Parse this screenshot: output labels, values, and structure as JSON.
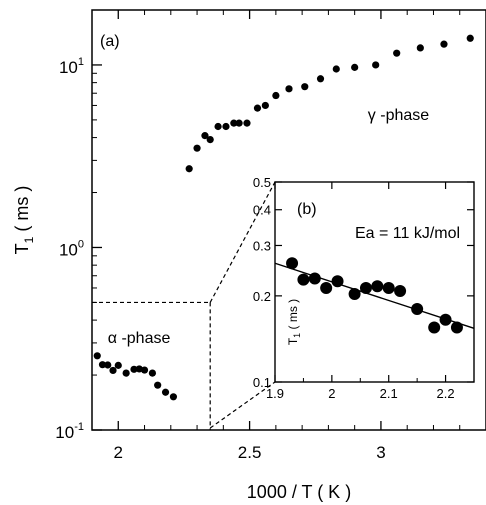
{
  "chart_data": [
    {
      "type": "scatter",
      "panel_label": "(a)",
      "xlabel": "1000 / T ( K )",
      "ylabel": "T",
      "ylabel_sub": "1",
      "ylabel_unit": "( ms )",
      "x_range": [
        1.9,
        3.4
      ],
      "y_range": [
        0.1,
        20
      ],
      "y_scale": "log",
      "x_ticks": [
        2,
        2.5,
        3
      ],
      "x_tick_labels": [
        "2",
        "2.5",
        "3"
      ],
      "y_ticks": [
        {
          "value": 0.1,
          "base": "10",
          "exp": "-1"
        },
        {
          "value": 1,
          "base": "10",
          "exp": "0"
        },
        {
          "value": 10,
          "base": "10",
          "exp": "1"
        }
      ],
      "annotations": [
        {
          "text": "γ -phase",
          "x": 2.95,
          "y": 5.0
        },
        {
          "text": "α -phase",
          "x": 1.96,
          "y": 0.3
        }
      ],
      "zoom_box": {
        "x": [
          1.9,
          2.35
        ],
        "y_top": 0.5
      },
      "series": [
        {
          "x": [
            1.92,
            1.94,
            1.96,
            1.98,
            2.0,
            2.03,
            2.06,
            2.08,
            2.1,
            2.13,
            2.15,
            2.18,
            2.21
          ],
          "y": [
            0.255,
            0.228,
            0.227,
            0.212,
            0.226,
            0.205,
            0.215,
            0.216,
            0.213,
            0.205,
            0.176,
            0.161,
            0.152
          ]
        },
        {
          "x": [
            2.27,
            2.3,
            2.33,
            2.35,
            2.38,
            2.41,
            2.44,
            2.46,
            2.49,
            2.53,
            2.56,
            2.6,
            2.65,
            2.71,
            2.77,
            2.83,
            2.9,
            2.98,
            3.06,
            3.15,
            3.24,
            3.34
          ],
          "y": [
            2.7,
            3.5,
            4.1,
            3.9,
            4.6,
            4.6,
            4.8,
            4.8,
            4.8,
            5.8,
            6.0,
            6.8,
            7.4,
            7.6,
            8.4,
            9.5,
            9.7,
            10.0,
            11.6,
            12.4,
            13.0,
            14.0
          ]
        }
      ]
    },
    {
      "type": "scatter",
      "panel_label": "(b)",
      "title": "Ea = 11 kJ/mol",
      "ylabel": "T",
      "ylabel_sub": "1",
      "ylabel_unit": " ( ms )",
      "x_range": [
        1.9,
        2.25
      ],
      "y_range": [
        0.1,
        0.5
      ],
      "y_scale": "log",
      "x_ticks": [
        1.9,
        2.0,
        2.1,
        2.2
      ],
      "x_tick_labels": [
        "1.9",
        "2",
        "2.1",
        "2.2"
      ],
      "y_ticks": [
        0.1,
        0.2,
        0.3,
        0.4,
        0.5
      ],
      "y_tick_labels": [
        "0.1",
        "0.2",
        "0.3",
        "0.4",
        "0.5"
      ],
      "series": [
        {
          "x": [
            1.93,
            1.95,
            1.97,
            1.99,
            2.01,
            2.04,
            2.06,
            2.08,
            2.1,
            2.12,
            2.15,
            2.18,
            2.2,
            2.22
          ],
          "y": [
            0.26,
            0.228,
            0.23,
            0.213,
            0.225,
            0.203,
            0.213,
            0.216,
            0.213,
            0.208,
            0.18,
            0.155,
            0.165,
            0.155
          ]
        }
      ],
      "fit_line": {
        "x": [
          1.9,
          2.25
        ],
        "y": [
          0.26,
          0.154
        ]
      }
    }
  ]
}
